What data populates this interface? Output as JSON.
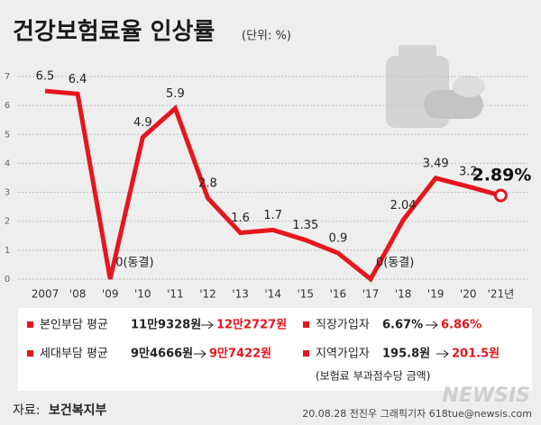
{
  "chart_data": {
    "type": "line",
    "title": "건강보험료율 인상률",
    "subtitle": "(단위: %)",
    "categories": [
      "2007",
      "'08",
      "'09",
      "'10",
      "'11",
      "'12",
      "'13",
      "'14",
      "'15",
      "'16",
      "'17",
      "'18",
      "'19",
      "'20",
      "'21년"
    ],
    "series": [
      {
        "color": "#e5161e",
        "values": [
          6.5,
          6.4,
          0,
          4.9,
          5.9,
          2.8,
          1.6,
          1.7,
          1.35,
          0.9,
          0,
          2.04,
          3.49,
          3.2,
          2.89
        ],
        "value_labels": [
          "6.5",
          "6.4",
          "0(동결)",
          "4.9",
          "5.9",
          "2.8",
          "1.6",
          "1.7",
          "1.35",
          "0.9",
          "0(동결)",
          "2.04",
          "3.49",
          "3.2",
          "2.89%"
        ]
      }
    ],
    "ylim": [
      0,
      7
    ],
    "yticks": [
      0,
      1,
      2,
      3,
      4,
      5,
      6,
      7
    ],
    "grid": true
  },
  "notes": [
    {
      "label": "본인부담 평균",
      "before": "11만9328원",
      "after": "12만2727원"
    },
    {
      "label": "직장가입자",
      "before": "6.67%",
      "after": "6.86%"
    },
    {
      "label": "세대부담 평균",
      "before": "9만4666원",
      "after": "9만7422원"
    },
    {
      "label": "지역가입자",
      "before": "195.8원",
      "after": "201.5원",
      "sub": "(보험료 부과점수당 금액)"
    }
  ],
  "source": {
    "label": "자료:",
    "name": "보건복지부"
  },
  "credit": "20.08.28 전진우 그래픽기자 618tue@newsis.com",
  "logo": "NEWSIS"
}
